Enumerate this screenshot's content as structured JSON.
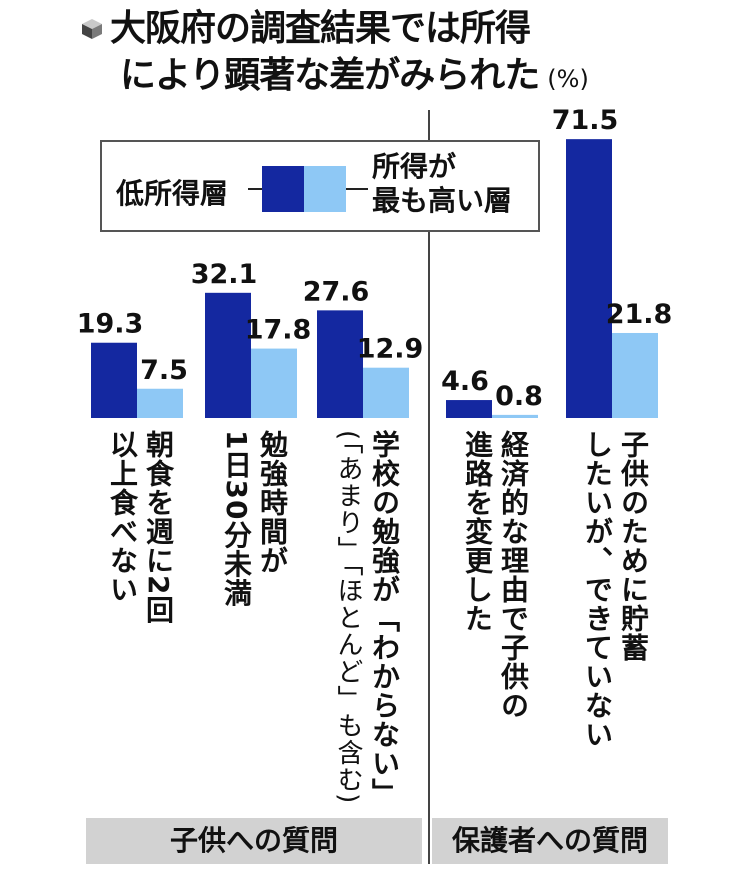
{
  "title": {
    "line1": "大阪府の調査結果では所得",
    "line2": "により顕著な差がみられた",
    "unit": "(%)"
  },
  "legend": {
    "low": "低所得層",
    "high_line1": "所得が",
    "high_line2": "最も高い層"
  },
  "groups": {
    "children": "子供への質問",
    "parents": "保護者への質問"
  },
  "colors": {
    "low": "#1428a0",
    "high": "#8ec8f5",
    "band": "#d2d2d2"
  },
  "chart_data": {
    "type": "bar",
    "title": "大阪府の調査結果では所得により顕著な差がみられた",
    "ylabel": "(%)",
    "ylim": [
      0,
      75
    ],
    "grid": false,
    "legend_position": "top-left",
    "categories": [
      "朝食を週に2回以上食べない",
      "勉強時間が1日30分未満",
      "学校の勉強が「わからない」(「あまり」「ほとんど」も含む)",
      "経済的な理由で子供の進路を変更した",
      "子供のために貯蓄したいが、できていない"
    ],
    "category_groups": [
      "子供への質問",
      "子供への質問",
      "子供への質問",
      "保護者への質問",
      "保護者への質問"
    ],
    "series": [
      {
        "name": "低所得層",
        "values": [
          19.3,
          32.1,
          27.6,
          4.6,
          71.5
        ]
      },
      {
        "name": "所得が最も高い層",
        "values": [
          7.5,
          17.8,
          12.9,
          0.8,
          21.8
        ]
      }
    ],
    "value_labels": {
      "low": [
        "19.3",
        "32.1",
        "27.6",
        "4.6",
        "71.5"
      ],
      "high": [
        "7.5",
        "17.8",
        "12.9",
        "0.8",
        "21.8"
      ]
    },
    "label_lines": [
      {
        "main": [
          "朝食を週に2回",
          "以上食べない"
        ],
        "sub": []
      },
      {
        "main": [
          "勉強時間が",
          "1日30分未満"
        ],
        "sub": []
      },
      {
        "main": [
          "学校の勉強が「わからない」"
        ],
        "sub": [
          "(「あまり」「ほとんど」も含む)"
        ]
      },
      {
        "main": [
          "経済的な理由で子供の",
          "進路を変更した"
        ],
        "sub": []
      },
      {
        "main": [
          "子供のために貯蓄",
          "したいが、できていない"
        ],
        "sub": []
      }
    ]
  }
}
